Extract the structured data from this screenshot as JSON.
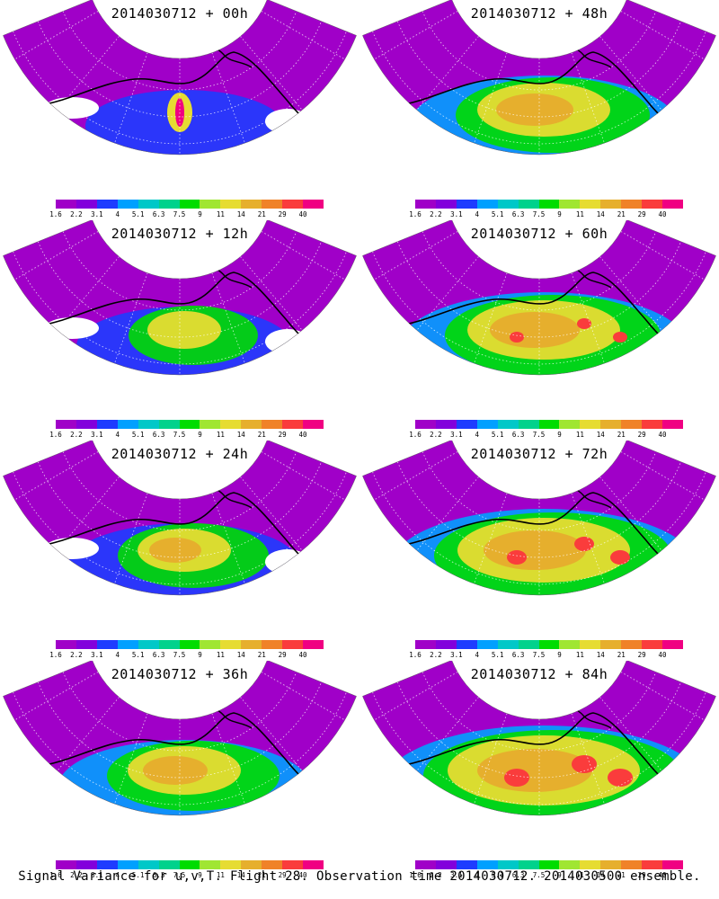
{
  "panels": [
    {
      "title": "2014030712 + 00h",
      "intensity": 0
    },
    {
      "title": "2014030712 + 48h",
      "intensity": 4
    },
    {
      "title": "2014030712 + 12h",
      "intensity": 1
    },
    {
      "title": "2014030712 + 60h",
      "intensity": 5
    },
    {
      "title": "2014030712 + 24h",
      "intensity": 2
    },
    {
      "title": "2014030712 + 72h",
      "intensity": 6
    },
    {
      "title": "2014030712 + 36h",
      "intensity": 3
    },
    {
      "title": "2014030712 + 84h",
      "intensity": 7
    }
  ],
  "colorbar": {
    "colors": [
      "#a000c8",
      "#8200dc",
      "#1e3cff",
      "#00a0ff",
      "#00c8c8",
      "#00d28c",
      "#00dc00",
      "#a0e632",
      "#e6dc32",
      "#e6af2d",
      "#f08228",
      "#fa3c3c",
      "#f00082"
    ],
    "labels": [
      "1.6",
      "2.2",
      "3.1",
      "4",
      "5.1",
      "6.3",
      "7.5",
      "9",
      "11",
      "14",
      "21",
      "29",
      "40"
    ]
  },
  "footer": "Signal Variance for u,v,T. Flight 28. Observation time 2014030712. 2014030500 ensemble."
}
